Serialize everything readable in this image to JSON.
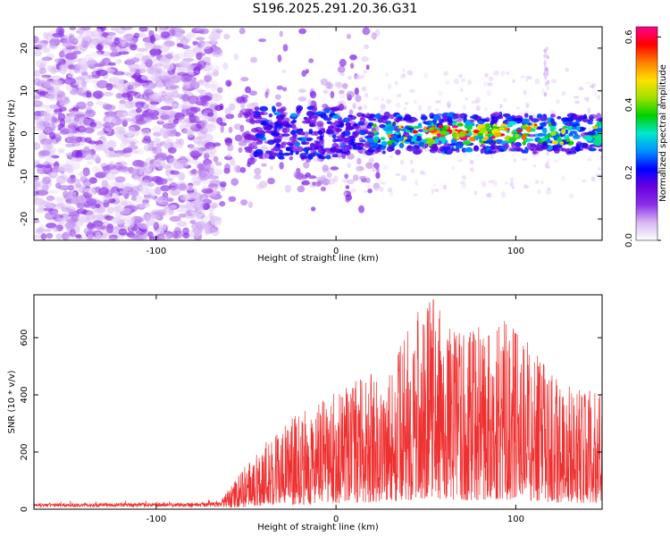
{
  "title": "S196.2025.291.20.36.G31",
  "chart_data": [
    {
      "type": "heatmap",
      "title": "S196.2025.291.20.36.G31",
      "xlabel": "Height of straight line (km)",
      "ylabel": "Frequency (Hz)",
      "xlim": [
        -168,
        148
      ],
      "ylim": [
        -25,
        25
      ],
      "xticks": [
        -100,
        0,
        100
      ],
      "yticks": [
        -20,
        -10,
        0,
        10,
        20
      ],
      "ytick_labels": [
        "-20",
        "-10",
        "0",
        "10",
        "20"
      ],
      "xtick_labels": [
        "-100",
        "0",
        "100"
      ],
      "colorbar": {
        "label": "Normalized spectral amplitude",
        "range": [
          0.0,
          0.63
        ],
        "ticks": [
          "0.0",
          "0.2",
          "0.4",
          "0.6"
        ],
        "tick_values": [
          0.0,
          0.2,
          0.4,
          0.6
        ],
        "colormap": [
          "#ffffff",
          "#d8b8f4",
          "#8b30e8",
          "#6a00e0",
          "#0000ff",
          "#0090ff",
          "#00e8d0",
          "#00d000",
          "#a0e000",
          "#ffe000",
          "#ff8000",
          "#ff0000",
          "#ff0090"
        ]
      },
      "features": {
        "noise_region_x": [
          -168,
          -66
        ],
        "noise_amplitude": 0.1,
        "signal_center_hz": 0,
        "signal_band_hz": [
          -5,
          5
        ],
        "signal_peak_amplitude": 0.62,
        "signal_peak_x": [
          50,
          110
        ]
      }
    },
    {
      "type": "line",
      "xlabel": "Height of straight line (km)",
      "ylabel": "SNR (10 * v/v)",
      "xlim": [
        -168,
        148
      ],
      "ylim": [
        0,
        750
      ],
      "xticks": [
        -100,
        0,
        100
      ],
      "xtick_labels": [
        "-100",
        "0",
        "100"
      ],
      "yticks": [
        0,
        200,
        400,
        600
      ],
      "ytick_labels": [
        "0",
        "200",
        "400",
        "600"
      ],
      "series": [
        {
          "name": "SNR",
          "color": "#ef3030",
          "envelope": [
            {
              "x": -168,
              "y": 20
            },
            {
              "x": -100,
              "y": 22
            },
            {
              "x": -65,
              "y": 25
            },
            {
              "x": -55,
              "y": 110
            },
            {
              "x": -40,
              "y": 250
            },
            {
              "x": -30,
              "y": 300
            },
            {
              "x": -10,
              "y": 370
            },
            {
              "x": 10,
              "y": 450
            },
            {
              "x": 30,
              "y": 500
            },
            {
              "x": 45,
              "y": 690
            },
            {
              "x": 55,
              "y": 740
            },
            {
              "x": 65,
              "y": 620
            },
            {
              "x": 80,
              "y": 640
            },
            {
              "x": 95,
              "y": 670
            },
            {
              "x": 110,
              "y": 560
            },
            {
              "x": 120,
              "y": 480
            },
            {
              "x": 135,
              "y": 430
            },
            {
              "x": 148,
              "y": 400
            }
          ]
        }
      ]
    }
  ]
}
